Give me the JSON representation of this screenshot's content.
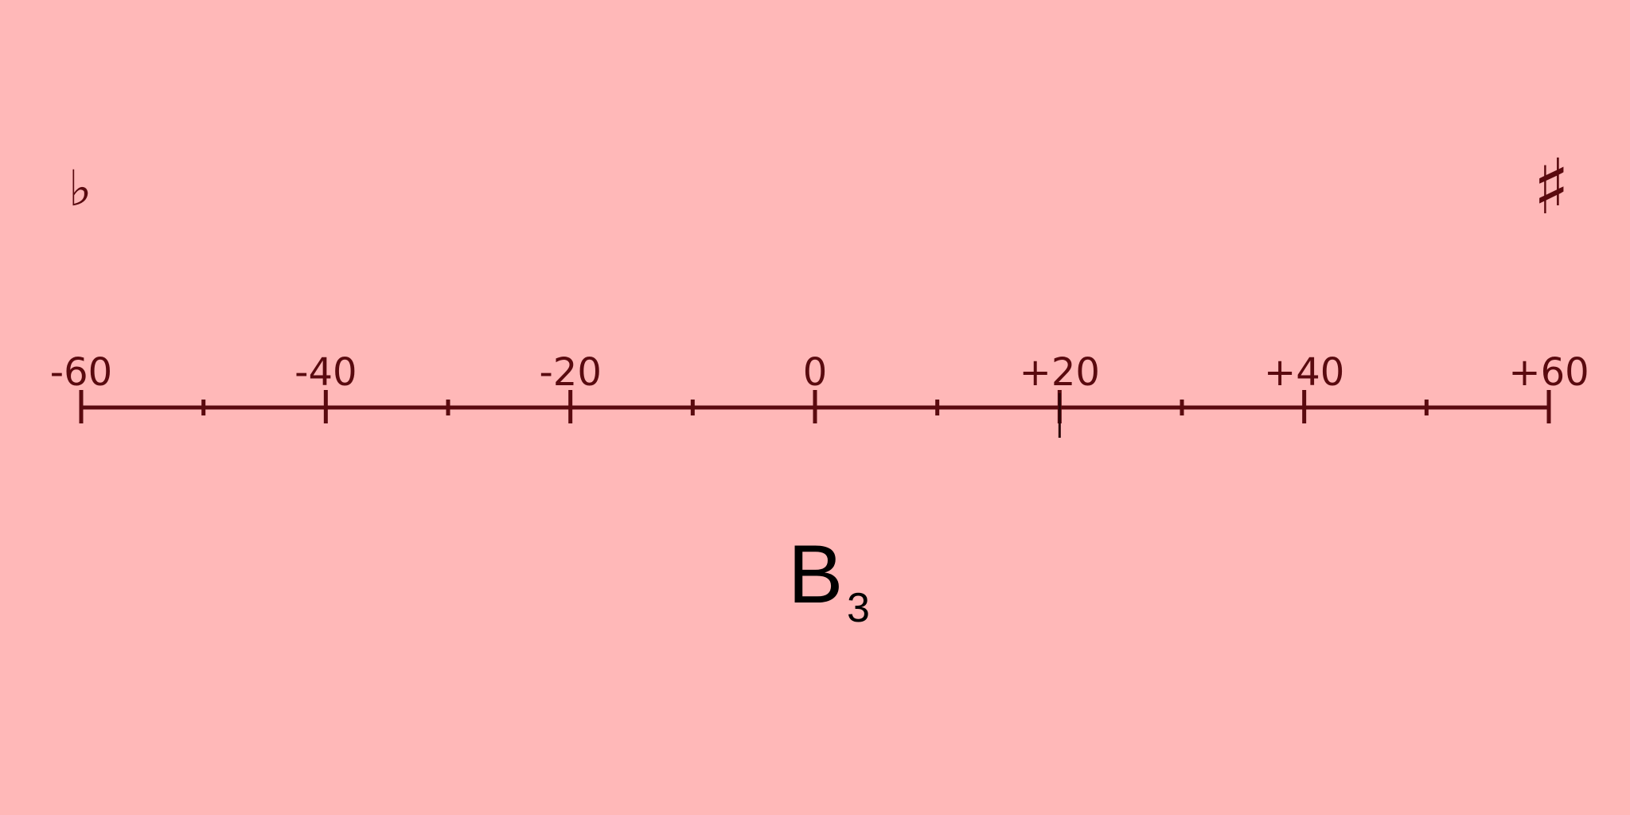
{
  "colors": {
    "background": "#ffb8b8",
    "scale": "#5a0a0f",
    "note": "#000000"
  },
  "scale": {
    "min": -60,
    "max": 60,
    "major_ticks": [
      {
        "value": -60,
        "label": "-60"
      },
      {
        "value": -40,
        "label": "-40"
      },
      {
        "value": -20,
        "label": "-20"
      },
      {
        "value": 0,
        "label": "0"
      },
      {
        "value": 20,
        "label": "+20"
      },
      {
        "value": 40,
        "label": "+40"
      },
      {
        "value": 60,
        "label": "+60"
      }
    ],
    "minor_ticks": [
      -50,
      -30,
      -10,
      10,
      30,
      50
    ]
  },
  "indicator": {
    "value": 20
  },
  "flat_symbol": "♭",
  "sharp_symbol": "♯",
  "note": {
    "name": "B",
    "octave": "3"
  }
}
